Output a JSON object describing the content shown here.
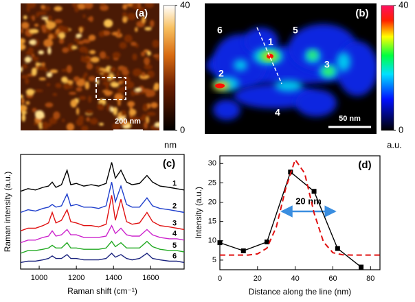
{
  "images": [
    {
      "label": "(a)",
      "scale_bar": "200 nm",
      "colorbar": {
        "lim": [
          0,
          40
        ],
        "ticks": [
          0,
          40
        ],
        "unit": "nm"
      }
    },
    {
      "label": "(b)",
      "scale_bar": "50 nm",
      "regions": [
        "1",
        "2",
        "3",
        "4",
        "5",
        "6"
      ],
      "colorbar": {
        "lim": [
          0,
          40
        ],
        "ticks": [
          0,
          40
        ],
        "unit": "a.u."
      }
    }
  ],
  "chart_data": [
    {
      "type": "line",
      "label": "(c)",
      "x_label": "Raman shift (cm⁻¹)",
      "y_label": "Raman intensity (a.u.)",
      "x": [
        900,
        940,
        980,
        1020,
        1050,
        1070,
        1090,
        1120,
        1150,
        1170,
        1200,
        1240,
        1280,
        1320,
        1360,
        1390,
        1410,
        1440,
        1470,
        1500,
        1540,
        1580,
        1610,
        1650,
        1700,
        1740,
        1780
      ],
      "series": [
        {
          "name": "1",
          "color": "#000000",
          "values": [
            8.2,
            8.4,
            8.3,
            8.5,
            8.6,
            8.9,
            8.5,
            8.7,
            9.8,
            8.7,
            8.8,
            8.6,
            8.7,
            8.6,
            8.8,
            10.4,
            9.2,
            9.8,
            8.9,
            8.7,
            8.8,
            9.4,
            8.9,
            8.6,
            8.5,
            8.4,
            8.3
          ]
        },
        {
          "name": "2",
          "color": "#1f3fcc",
          "values": [
            6.6,
            6.8,
            6.7,
            6.9,
            7.0,
            7.2,
            7.0,
            7.1,
            8.0,
            7.1,
            7.2,
            7.0,
            7.0,
            6.9,
            7.1,
            8.9,
            7.4,
            8.6,
            7.2,
            7.0,
            7.0,
            7.7,
            7.1,
            6.9,
            6.8,
            6.7,
            6.6
          ]
        },
        {
          "name": "3",
          "color": "#e01010",
          "values": [
            5.2,
            5.4,
            5.4,
            5.6,
            5.8,
            6.6,
            5.8,
            6.0,
            6.8,
            5.9,
            5.8,
            5.6,
            5.6,
            5.5,
            5.7,
            7.9,
            6.0,
            7.6,
            5.9,
            5.7,
            5.8,
            6.6,
            5.9,
            5.6,
            5.5,
            5.4,
            5.3
          ]
        },
        {
          "name": "4",
          "color": "#cc22cc",
          "values": [
            4.3,
            4.5,
            4.5,
            4.7,
            4.8,
            5.2,
            4.8,
            4.9,
            5.3,
            4.9,
            4.9,
            4.7,
            4.7,
            4.7,
            4.8,
            5.6,
            5.0,
            5.4,
            4.9,
            4.8,
            4.8,
            5.3,
            4.9,
            4.7,
            4.6,
            4.6,
            4.5
          ]
        },
        {
          "name": "5",
          "color": "#22aa22",
          "values": [
            3.5,
            3.7,
            3.7,
            3.8,
            3.9,
            4.1,
            3.9,
            3.9,
            4.3,
            3.9,
            3.9,
            3.8,
            3.8,
            3.8,
            3.9,
            4.4,
            4.0,
            4.3,
            3.9,
            3.9,
            3.9,
            4.4,
            4.0,
            3.8,
            3.7,
            3.7,
            3.6
          ]
        },
        {
          "name": "6",
          "color": "#1a237e",
          "values": [
            2.8,
            2.9,
            2.9,
            3.0,
            3.1,
            3.3,
            3.1,
            3.1,
            3.4,
            3.1,
            3.1,
            3.0,
            3.0,
            3.0,
            3.1,
            3.5,
            3.2,
            3.4,
            3.1,
            3.0,
            3.1,
            3.5,
            3.1,
            3.0,
            2.9,
            2.9,
            2.8
          ]
        }
      ],
      "xlim": [
        900,
        1780
      ],
      "xticks": [
        1000,
        1200,
        1400,
        1600
      ],
      "ylim": [
        2.3,
        11.0
      ]
    },
    {
      "type": "line",
      "label": "(d)",
      "x_label": "Distance along the line (nm)",
      "y_label": "Intensity (a.u.)",
      "annotation": "20 nm",
      "series": [
        {
          "color": "#000000",
          "marker": "square",
          "x": [
            0,
            12.5,
            25,
            37.5,
            50,
            62.5,
            75
          ],
          "values": [
            9.5,
            7.4,
            9.7,
            27.8,
            22.8,
            8.0,
            3.2
          ]
        },
        {
          "color": "#e01010",
          "dashed": true,
          "x": [
            0,
            5,
            10,
            15,
            20,
            25,
            30,
            35,
            40,
            45,
            50,
            55,
            60,
            65,
            70,
            75,
            80,
            85
          ],
          "values": [
            6.3,
            6.3,
            6.3,
            6.3,
            6.6,
            8.1,
            13.6,
            23.6,
            31.0,
            27.5,
            17.2,
            9.7,
            6.9,
            6.4,
            6.3,
            6.3,
            6.3,
            6.3
          ]
        }
      ],
      "xlim": [
        0,
        85
      ],
      "xticks": [
        0,
        20,
        40,
        60,
        80
      ],
      "ylim": [
        2.5,
        32
      ],
      "yticks": [
        5,
        10,
        15,
        20,
        25,
        30
      ]
    }
  ]
}
